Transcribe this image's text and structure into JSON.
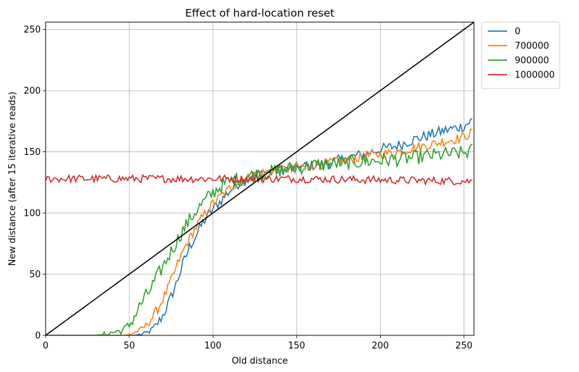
{
  "chart_data": {
    "type": "line",
    "title": "Effect of hard-location reset",
    "xlabel": "Old distance",
    "ylabel": "New distance (after 15 iterative reads)",
    "xlim": [
      0,
      256
    ],
    "ylim": [
      0,
      256
    ],
    "xticks": [
      0,
      50,
      100,
      150,
      200,
      250
    ],
    "yticks": [
      0,
      50,
      100,
      150,
      200,
      250
    ],
    "grid": true,
    "legend_position": "outside-top-right",
    "x_start": 0,
    "x_step": 1,
    "series": [
      {
        "name": "0",
        "color": "#1f77b4",
        "anchors": [
          [
            0,
            0
          ],
          [
            53,
            0
          ],
          [
            58,
            1
          ],
          [
            62,
            3
          ],
          [
            66,
            8
          ],
          [
            70,
            16
          ],
          [
            74,
            28
          ],
          [
            78,
            42
          ],
          [
            82,
            58
          ],
          [
            86,
            72
          ],
          [
            90,
            82
          ],
          [
            94,
            92
          ],
          [
            98,
            100
          ],
          [
            102,
            106
          ],
          [
            106,
            112
          ],
          [
            110,
            118
          ],
          [
            115,
            124
          ],
          [
            120,
            128
          ],
          [
            125,
            131
          ],
          [
            130,
            133
          ],
          [
            135,
            134
          ],
          [
            140,
            135
          ],
          [
            150,
            137
          ],
          [
            160,
            139
          ],
          [
            170,
            141
          ],
          [
            180,
            145
          ],
          [
            190,
            148
          ],
          [
            200,
            152
          ],
          [
            210,
            155
          ],
          [
            220,
            160
          ],
          [
            230,
            164
          ],
          [
            240,
            168
          ],
          [
            250,
            171
          ],
          [
            255,
            176
          ]
        ],
        "noise": 4.5
      },
      {
        "name": "700000",
        "color": "#ff7f0e",
        "anchors": [
          [
            0,
            0
          ],
          [
            47,
            0
          ],
          [
            51,
            1
          ],
          [
            56,
            4
          ],
          [
            60,
            8
          ],
          [
            64,
            15
          ],
          [
            68,
            24
          ],
          [
            72,
            35
          ],
          [
            76,
            48
          ],
          [
            80,
            62
          ],
          [
            84,
            74
          ],
          [
            88,
            84
          ],
          [
            92,
            93
          ],
          [
            96,
            101
          ],
          [
            100,
            108
          ],
          [
            105,
            114
          ],
          [
            110,
            120
          ],
          [
            115,
            125
          ],
          [
            120,
            128
          ],
          [
            125,
            131
          ],
          [
            130,
            133
          ],
          [
            140,
            135
          ],
          [
            150,
            137
          ],
          [
            160,
            139
          ],
          [
            170,
            141
          ],
          [
            180,
            143
          ],
          [
            190,
            146
          ],
          [
            200,
            148
          ],
          [
            210,
            150
          ],
          [
            220,
            153
          ],
          [
            230,
            156
          ],
          [
            240,
            159
          ],
          [
            250,
            162
          ],
          [
            255,
            166
          ]
        ],
        "noise": 4
      },
      {
        "name": "900000",
        "color": "#2ca02c",
        "anchors": [
          [
            0,
            0
          ],
          [
            30,
            0
          ],
          [
            36,
            1
          ],
          [
            42,
            3
          ],
          [
            46,
            4
          ],
          [
            50,
            8
          ],
          [
            54,
            18
          ],
          [
            58,
            28
          ],
          [
            62,
            36
          ],
          [
            66,
            46
          ],
          [
            70,
            56
          ],
          [
            74,
            66
          ],
          [
            78,
            76
          ],
          [
            82,
            86
          ],
          [
            86,
            94
          ],
          [
            90,
            102
          ],
          [
            94,
            108
          ],
          [
            98,
            114
          ],
          [
            102,
            119
          ],
          [
            106,
            123
          ],
          [
            110,
            126
          ],
          [
            115,
            128
          ],
          [
            120,
            130
          ],
          [
            130,
            132
          ],
          [
            140,
            135
          ],
          [
            150,
            137
          ],
          [
            160,
            139
          ],
          [
            170,
            140
          ],
          [
            180,
            141
          ],
          [
            190,
            142
          ],
          [
            200,
            143
          ],
          [
            210,
            144
          ],
          [
            220,
            145
          ],
          [
            230,
            147
          ],
          [
            240,
            148
          ],
          [
            250,
            149
          ],
          [
            255,
            151
          ]
        ],
        "noise": 6
      },
      {
        "name": "1000000",
        "color": "#d62728",
        "anchors": [
          [
            0,
            128
          ],
          [
            50,
            128
          ],
          [
            100,
            128
          ],
          [
            150,
            128
          ],
          [
            200,
            127
          ],
          [
            255,
            126
          ]
        ],
        "noise": 3.2
      }
    ],
    "reference_line": {
      "color": "#000000",
      "x": [
        0,
        256
      ],
      "y": [
        0,
        256
      ]
    }
  }
}
